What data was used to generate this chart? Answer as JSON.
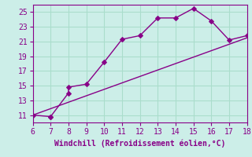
{
  "xlabel": "Windchill (Refroidissement éolien,°C)",
  "background_color": "#cceee8",
  "grid_color": "#aaddcc",
  "line_color": "#880088",
  "xlim": [
    6,
    18
  ],
  "ylim": [
    10,
    26
  ],
  "xticks": [
    6,
    7,
    8,
    9,
    10,
    11,
    12,
    13,
    14,
    15,
    16,
    17,
    18
  ],
  "yticks": [
    11,
    13,
    15,
    17,
    19,
    21,
    23,
    25
  ],
  "curve_x": [
    6,
    7,
    7,
    8,
    8,
    9,
    10,
    11,
    12,
    13,
    14,
    15,
    16,
    17,
    18
  ],
  "curve_y": [
    11.0,
    10.8,
    10.8,
    14.0,
    14.8,
    15.2,
    18.2,
    21.3,
    21.8,
    24.2,
    24.2,
    25.5,
    23.8,
    21.2,
    21.8
  ],
  "line_x": [
    6,
    18
  ],
  "line_y": [
    11.0,
    21.5
  ],
  "tick_fontsize": 7,
  "xlabel_fontsize": 7
}
